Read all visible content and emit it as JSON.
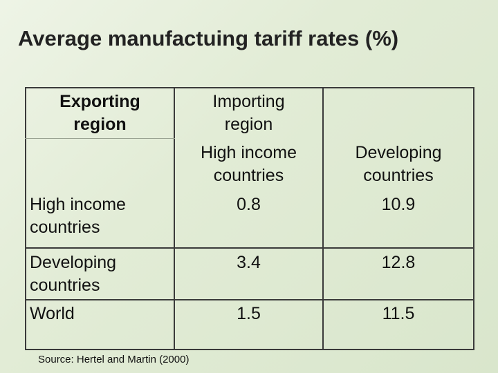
{
  "title": "Average manufactuing tariff rates (%)",
  "table": {
    "exporting_header": [
      "Exporting",
      "region"
    ],
    "importing_header": [
      "Importing",
      "region"
    ],
    "col_high": [
      "High income",
      "countries"
    ],
    "col_dev": [
      "Developing",
      "countries"
    ],
    "rows": [
      {
        "label": [
          "High income",
          "countries"
        ],
        "high": "0.8",
        "dev": "10.9"
      },
      {
        "label": [
          "Developing",
          "countries"
        ],
        "high": "3.4",
        "dev": "12.8"
      },
      {
        "label": [
          "World"
        ],
        "high": "1.5",
        "dev": "11.5"
      }
    ]
  },
  "source": "Source: Hertel and Martin (2000)"
}
